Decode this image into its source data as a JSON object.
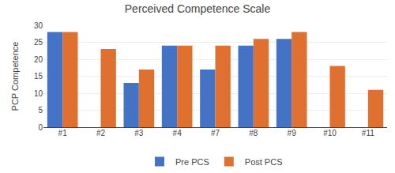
{
  "chart_data": {
    "type": "bar",
    "title": "Perceived Competence Scale",
    "ylabel": "PCP Competence",
    "categories": [
      "#1",
      "#2",
      "#3",
      "#4",
      "#7",
      "#8",
      "#9",
      "#10",
      "#11"
    ],
    "series": [
      {
        "name": "Pre PCS",
        "color": "#4472C4",
        "values": [
          28,
          0,
          13,
          24,
          17,
          24,
          26,
          0,
          0
        ]
      },
      {
        "name": "Post PCS",
        "color": "#E07030",
        "values": [
          28,
          23,
          17,
          24,
          24,
          26,
          28,
          18,
          11
        ]
      }
    ],
    "ylim": [
      0,
      30
    ],
    "yticks": [
      0,
      5,
      10,
      15,
      20,
      25,
      30
    ],
    "grid": true,
    "legend": "bottom"
  }
}
